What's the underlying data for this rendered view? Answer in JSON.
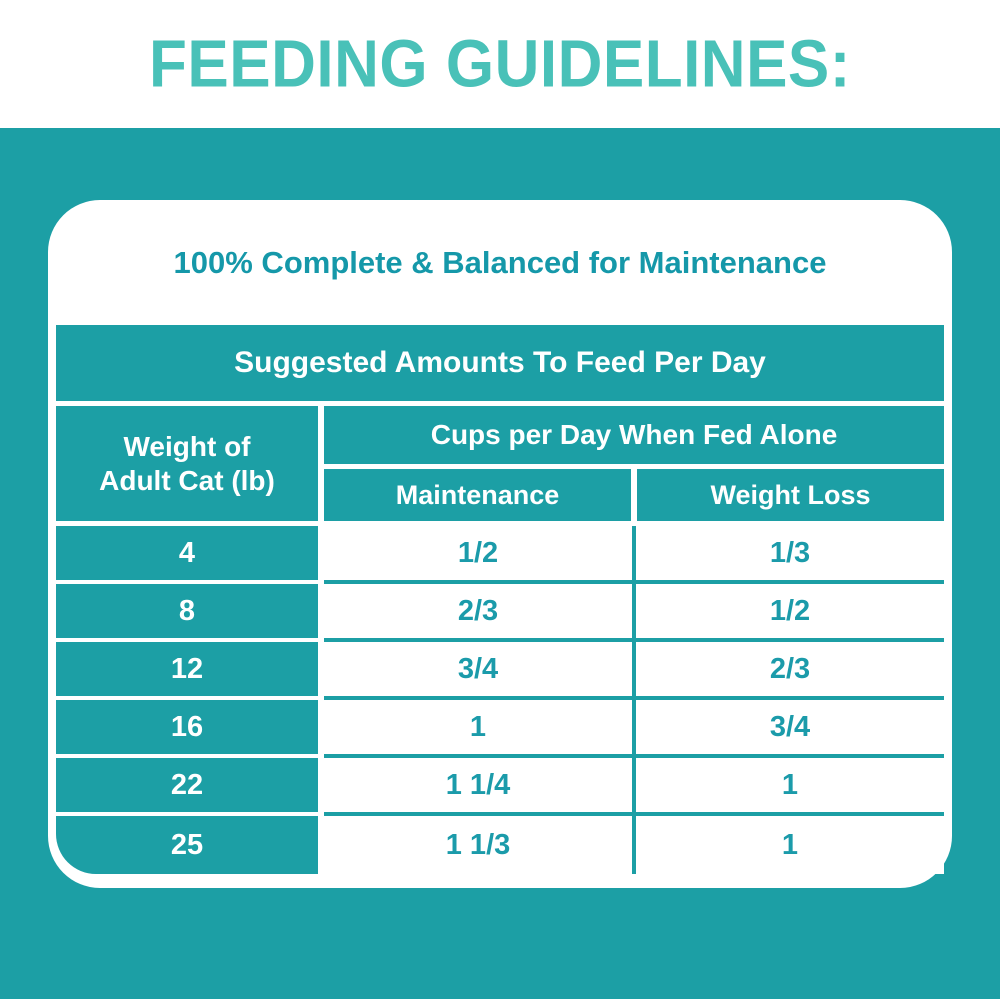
{
  "page_title": "FEEDING GUIDELINES:",
  "card": {
    "heading": "100% Complete & Balanced for Maintenance"
  },
  "table": {
    "band_title": "Suggested Amounts To Feed Per Day",
    "weight_header": {
      "line1": "Weight of",
      "line2": "Adult Cat (lb)"
    },
    "cups_header": "Cups per Day When Fed Alone",
    "columns": [
      "Maintenance",
      "Weight Loss"
    ]
  },
  "chart_data": {
    "type": "table",
    "title": "Suggested Amounts To Feed Per Day",
    "columns": [
      "Weight of Adult Cat (lb)",
      "Maintenance (cups per day)",
      "Weight Loss (cups per day)"
    ],
    "rows": [
      [
        "4",
        "1/2",
        "1/3"
      ],
      [
        "8",
        "2/3",
        "1/2"
      ],
      [
        "12",
        "3/4",
        "2/3"
      ],
      [
        "16",
        "1",
        "3/4"
      ],
      [
        "22",
        "1 1/4",
        "1"
      ],
      [
        "25",
        "1 1/3",
        "1"
      ]
    ]
  },
  "colors": {
    "teal_background": "#1c9fa5",
    "title_teal": "#49c1b8",
    "text_teal": "#1b9baa",
    "heading_teal": "#1598a9",
    "white": "#ffffff"
  }
}
